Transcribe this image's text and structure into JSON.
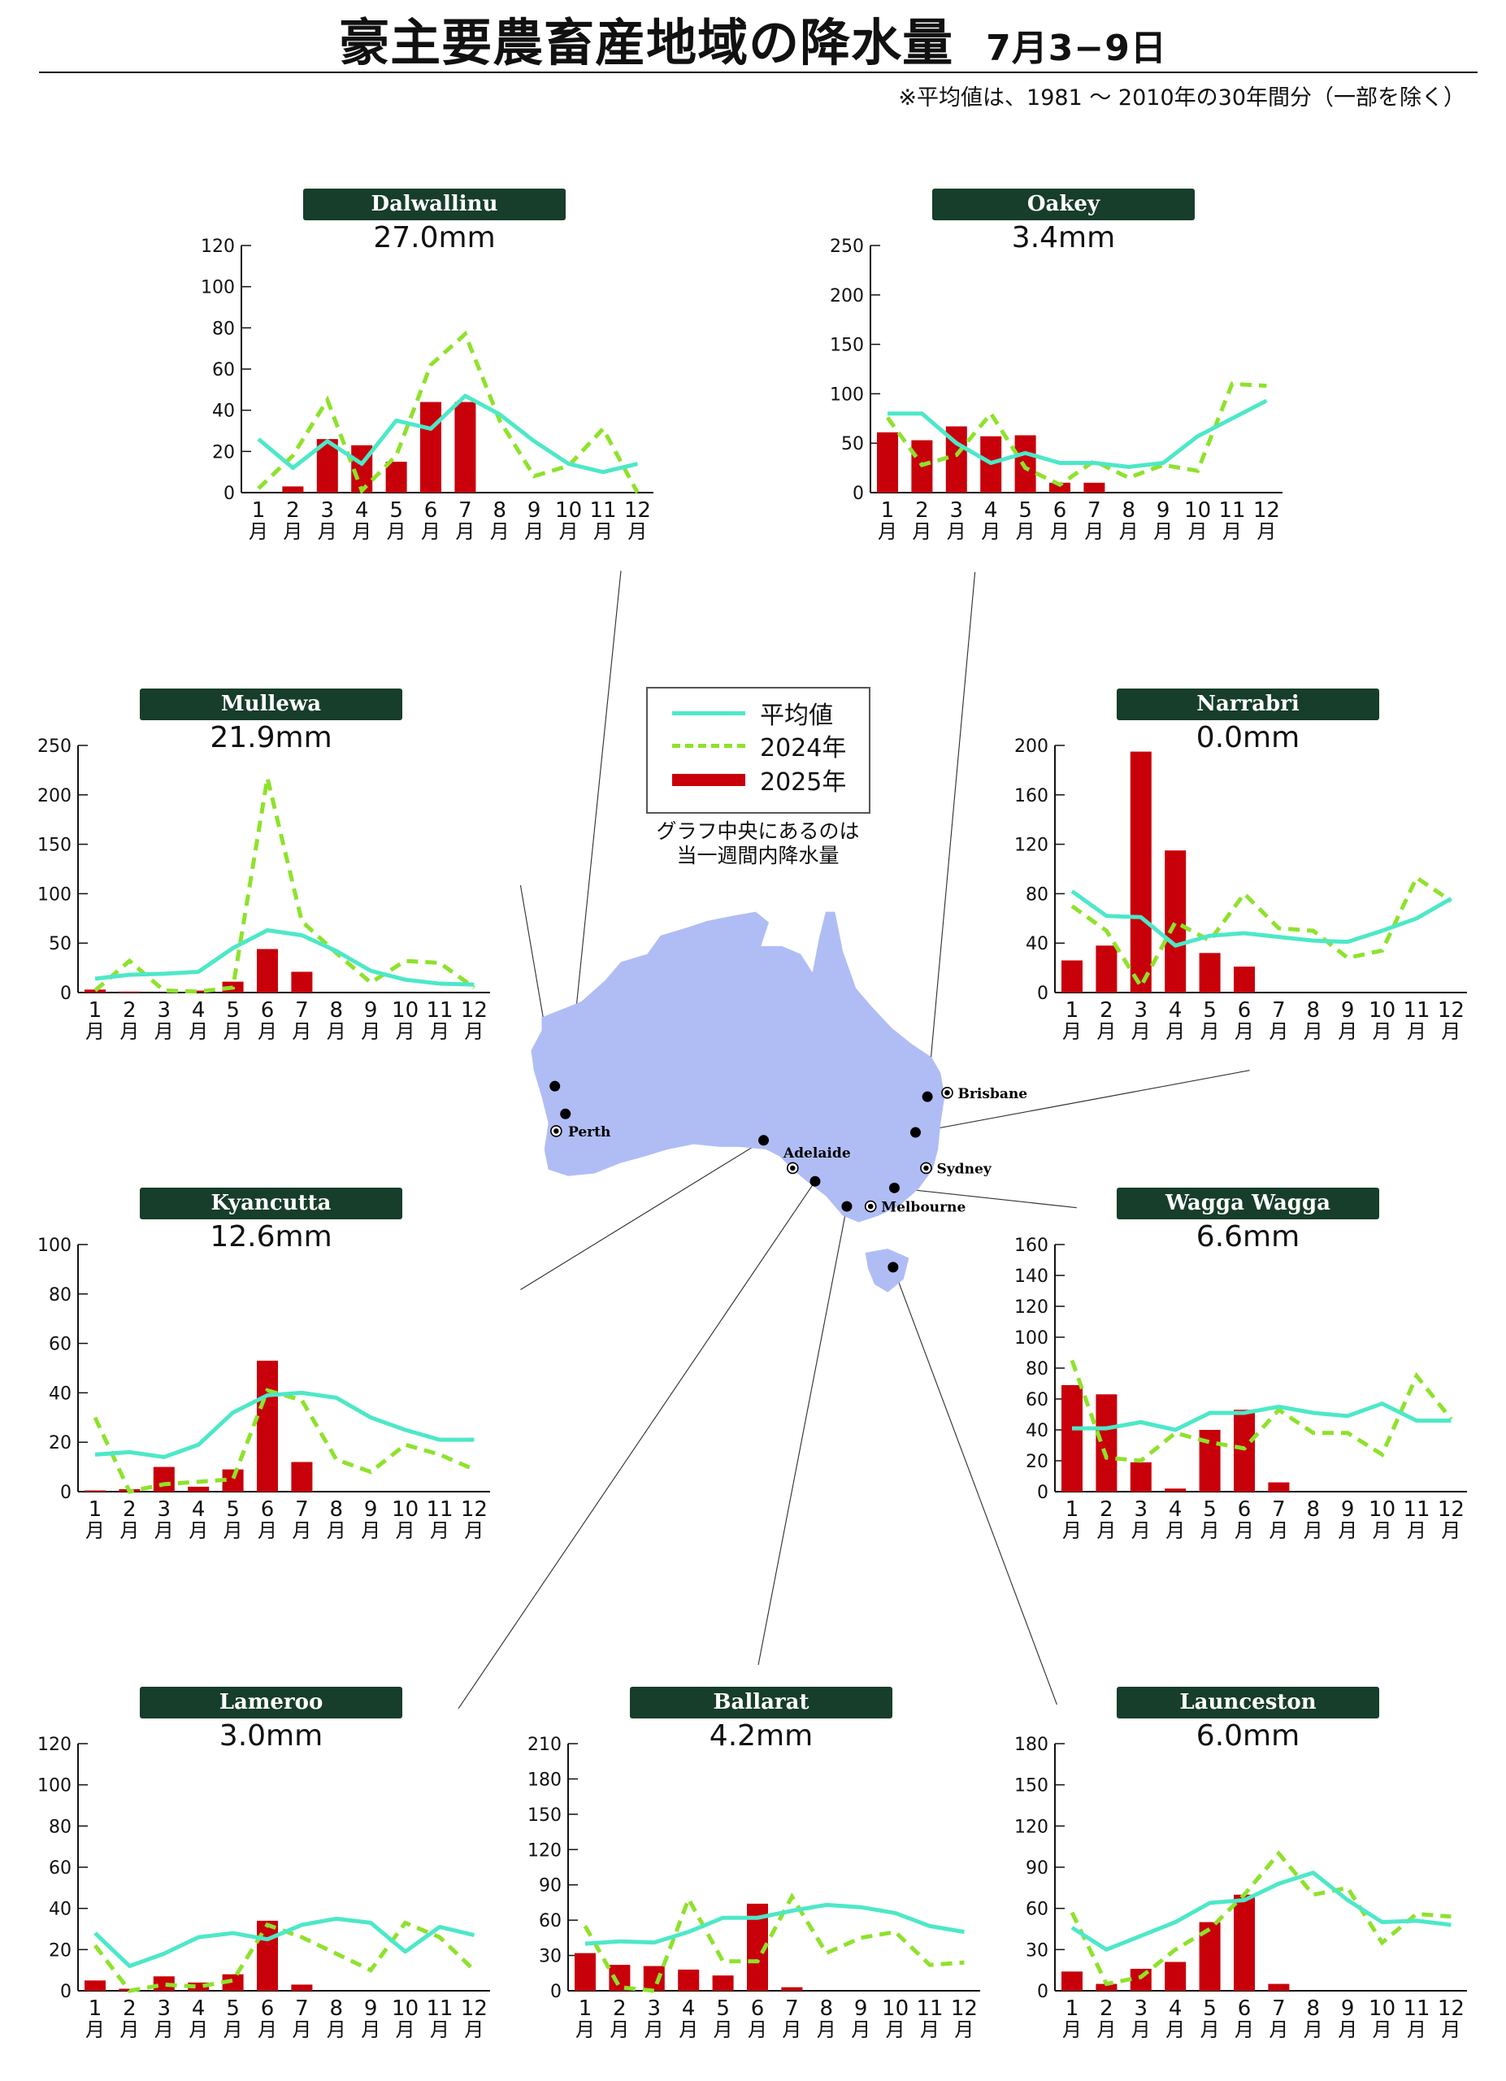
{
  "header": {
    "title": "豪主要農畜産地域の降水量",
    "date": "7月3−9日",
    "note": "※平均値は、1981 ～ 2010年の30年間分（一部を除く）"
  },
  "legend": {
    "average": "平均値",
    "y2024": "2024年",
    "y2025": "2025年",
    "caption_line1": "グラフ中央にあるのは",
    "caption_line2": "当一週間内降水量"
  },
  "colors": {
    "badge": "#173d2b",
    "bar2025": "#c8000a",
    "average": "#4de8c8",
    "y2024": "#8ee22b",
    "land": "#b0bdf5"
  },
  "map": {
    "cities": [
      "Perth",
      "Brisbane",
      "Sydney",
      "Adelaide",
      "Melbourne"
    ]
  },
  "month_labels": [
    "1",
    "2",
    "3",
    "4",
    "5",
    "6",
    "7",
    "8",
    "9",
    "10",
    "11",
    "12"
  ],
  "month_suffix": "月",
  "chart_data": [
    {
      "type": "bar+line",
      "station": "Dalwallinu",
      "weekly": "27.0mm",
      "ylim": [
        0,
        120
      ],
      "yticks": [
        0,
        20,
        40,
        60,
        80,
        100,
        120
      ],
      "series": [
        {
          "name": "2025年",
          "type": "bar",
          "values": [
            null,
            3,
            26,
            23,
            15,
            44,
            44,
            null,
            null,
            null,
            null,
            null
          ]
        },
        {
          "name": "平均値",
          "type": "line",
          "values": [
            26,
            12,
            25,
            14,
            35,
            31,
            47,
            38,
            25,
            14,
            10,
            14
          ]
        },
        {
          "name": "2024年",
          "type": "dashed",
          "values": [
            2,
            18,
            45,
            1,
            18,
            62,
            77,
            35,
            8,
            13,
            31,
            0
          ]
        }
      ]
    },
    {
      "type": "bar+line",
      "station": "Oakey",
      "weekly": "3.4mm",
      "ylim": [
        0,
        250
      ],
      "yticks": [
        0,
        50,
        100,
        150,
        200,
        250
      ],
      "series": [
        {
          "name": "2025年",
          "type": "bar",
          "values": [
            61,
            53,
            67,
            57,
            58,
            10,
            10,
            null,
            null,
            null,
            null,
            null
          ]
        },
        {
          "name": "平均値",
          "type": "line",
          "values": [
            80,
            80,
            50,
            30,
            40,
            30,
            30,
            26,
            30,
            57,
            75,
            93
          ]
        },
        {
          "name": "2024年",
          "type": "dashed",
          "values": [
            76,
            28,
            38,
            80,
            25,
            8,
            32,
            15,
            28,
            22,
            110,
            108
          ]
        }
      ]
    },
    {
      "type": "bar+line",
      "station": "Mullewa",
      "weekly": "21.9mm",
      "ylim": [
        0,
        250
      ],
      "yticks": [
        0,
        50,
        100,
        150,
        200,
        250
      ],
      "series": [
        {
          "name": "2025年",
          "type": "bar",
          "values": [
            3,
            1,
            null,
            2,
            11,
            44,
            21,
            null,
            null,
            null,
            null,
            null
          ]
        },
        {
          "name": "平均値",
          "type": "line",
          "values": [
            14,
            18,
            19,
            21,
            45,
            63,
            58,
            42,
            22,
            13,
            9,
            8
          ]
        },
        {
          "name": "2024年",
          "type": "dashed",
          "values": [
            2,
            32,
            2,
            1,
            5,
            217,
            72,
            40,
            10,
            32,
            30,
            5
          ]
        }
      ]
    },
    {
      "type": "bar+line",
      "station": "Narrabri",
      "weekly": "0.0mm",
      "ylim": [
        0,
        200
      ],
      "yticks": [
        0,
        40,
        80,
        120,
        160,
        200
      ],
      "series": [
        {
          "name": "2025年",
          "type": "bar",
          "values": [
            26,
            38,
            195,
            115,
            32,
            21,
            null,
            null,
            null,
            null,
            null,
            null
          ]
        },
        {
          "name": "平均値",
          "type": "line",
          "values": [
            82,
            62,
            61,
            38,
            46,
            48,
            45,
            42,
            41,
            50,
            60,
            76
          ]
        },
        {
          "name": "2024年",
          "type": "dashed",
          "values": [
            70,
            50,
            5,
            57,
            42,
            80,
            52,
            50,
            28,
            34,
            93,
            74
          ]
        }
      ]
    },
    {
      "type": "bar+line",
      "station": "Kyancutta",
      "weekly": "12.6mm",
      "ylim": [
        0,
        100
      ],
      "yticks": [
        0,
        20,
        40,
        60,
        80,
        100
      ],
      "series": [
        {
          "name": "2025年",
          "type": "bar",
          "values": [
            0.5,
            1,
            10,
            2,
            9,
            53,
            12,
            null,
            null,
            null,
            null,
            null
          ]
        },
        {
          "name": "平均値",
          "type": "line",
          "values": [
            15,
            16,
            14,
            19,
            32,
            39,
            40,
            38,
            30,
            25,
            21,
            21
          ]
        },
        {
          "name": "2024年",
          "type": "dashed",
          "values": [
            30,
            0,
            3,
            4,
            5,
            41,
            37,
            13,
            8,
            19,
            15,
            9
          ]
        }
      ]
    },
    {
      "type": "bar+line",
      "station": "Wagga Wagga",
      "weekly": "6.6mm",
      "ylim": [
        0,
        160
      ],
      "yticks": [
        0,
        20,
        40,
        60,
        80,
        100,
        120,
        140,
        160
      ],
      "series": [
        {
          "name": "2025年",
          "type": "bar",
          "values": [
            69,
            63,
            19,
            2,
            40,
            53,
            6,
            null,
            null,
            null,
            null,
            null
          ]
        },
        {
          "name": "平均値",
          "type": "line",
          "values": [
            41,
            41,
            45,
            40,
            51,
            51,
            55,
            51,
            49,
            57,
            46,
            46
          ]
        },
        {
          "name": "2024年",
          "type": "dashed",
          "values": [
            85,
            22,
            20,
            38,
            32,
            28,
            53,
            38,
            38,
            24,
            75,
            47
          ]
        }
      ]
    },
    {
      "type": "bar+line",
      "station": "Lameroo",
      "weekly": "3.0mm",
      "ylim": [
        0,
        120
      ],
      "yticks": [
        0,
        20,
        40,
        60,
        80,
        100,
        120
      ],
      "series": [
        {
          "name": "2025年",
          "type": "bar",
          "values": [
            5,
            1,
            7,
            4,
            8,
            34,
            3,
            null,
            null,
            null,
            null,
            null
          ]
        },
        {
          "name": "平均値",
          "type": "line",
          "values": [
            28,
            12,
            18,
            26,
            28,
            25,
            32,
            35,
            33,
            19,
            31,
            27
          ]
        },
        {
          "name": "2024年",
          "type": "dashed",
          "values": [
            22,
            0,
            3,
            2,
            5,
            32,
            26,
            18,
            10,
            33,
            26,
            10
          ]
        }
      ]
    },
    {
      "type": "bar+line",
      "station": "Ballarat",
      "weekly": "4.2mm",
      "ylim": [
        0,
        210
      ],
      "yticks": [
        0,
        30,
        60,
        90,
        120,
        150,
        180,
        210
      ],
      "series": [
        {
          "name": "2025年",
          "type": "bar",
          "values": [
            32,
            22,
            21,
            18,
            13,
            74,
            3,
            null,
            null,
            null,
            null,
            null
          ]
        },
        {
          "name": "平均値",
          "type": "line",
          "values": [
            40,
            42,
            41,
            50,
            62,
            62,
            68,
            73,
            71,
            66,
            55,
            50
          ]
        },
        {
          "name": "2024年",
          "type": "dashed",
          "values": [
            55,
            3,
            0,
            78,
            25,
            25,
            80,
            32,
            45,
            50,
            22,
            24
          ]
        }
      ]
    },
    {
      "type": "bar+line",
      "station": "Launceston",
      "weekly": "6.0mm",
      "ylim": [
        0,
        180
      ],
      "yticks": [
        0,
        30,
        60,
        90,
        120,
        150,
        180
      ],
      "series": [
        {
          "name": "2025年",
          "type": "bar",
          "values": [
            14,
            5,
            16,
            21,
            50,
            70,
            5,
            null,
            null,
            null,
            null,
            null
          ]
        },
        {
          "name": "平均値",
          "type": "line",
          "values": [
            46,
            30,
            40,
            50,
            64,
            66,
            78,
            86,
            66,
            50,
            51,
            48
          ]
        },
        {
          "name": "2024年",
          "type": "dashed",
          "values": [
            57,
            5,
            10,
            30,
            45,
            70,
            100,
            70,
            75,
            35,
            56,
            54
          ]
        }
      ]
    }
  ]
}
